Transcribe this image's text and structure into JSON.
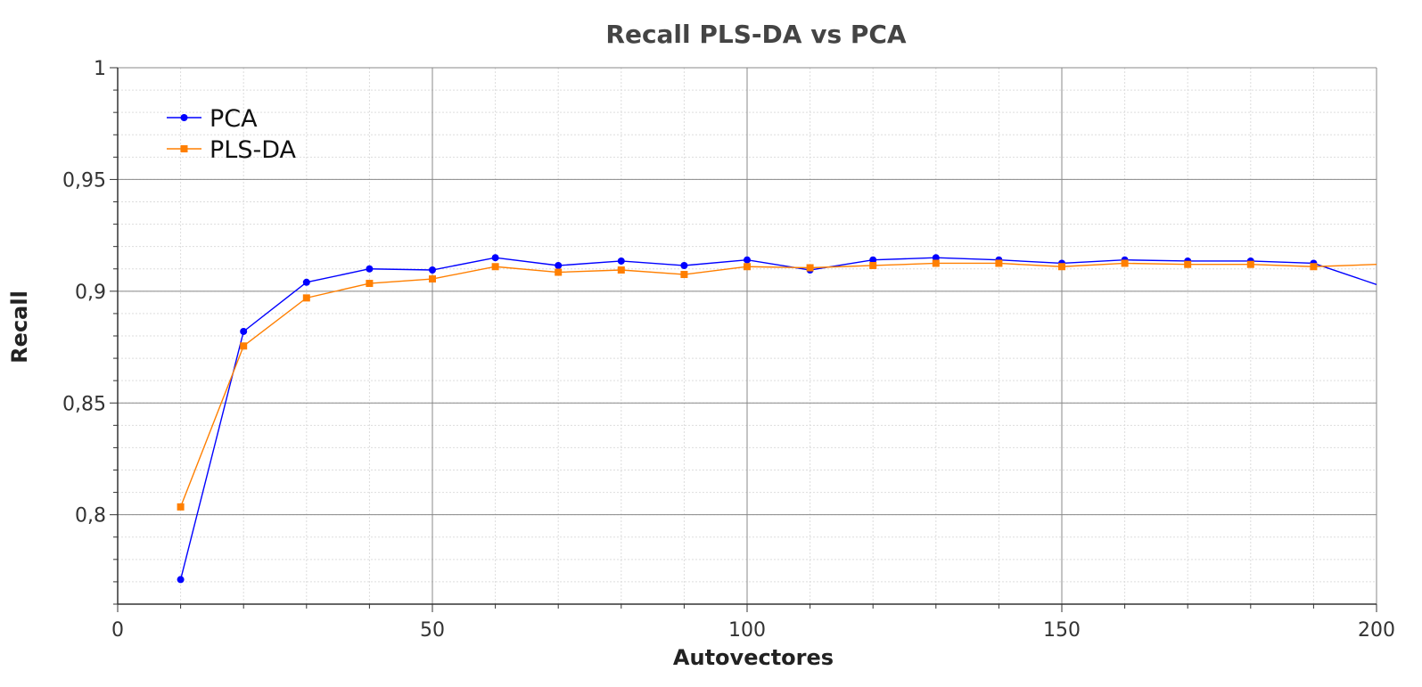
{
  "chart_data": {
    "type": "line",
    "title": "Recall PLS-DA vs PCA",
    "xlabel": "Autovectores",
    "ylabel": "Recall",
    "xlim": [
      0,
      200
    ],
    "ylim": [
      0.76,
      1.0
    ],
    "x_ticks": [
      0,
      50,
      100,
      150,
      200
    ],
    "x_tick_labels": [
      "0",
      "50",
      "100",
      "150",
      "200"
    ],
    "y_ticks": [
      0.8,
      0.85,
      0.9,
      0.95,
      1.0
    ],
    "y_tick_labels": [
      "0,8",
      "0,85",
      "0,9",
      "0,95",
      "1"
    ],
    "grid": true,
    "legend_position": "top-left",
    "series": [
      {
        "name": "PCA",
        "color": "#0000ff",
        "marker": "circle",
        "x": [
          10,
          20,
          30,
          40,
          50,
          60,
          70,
          80,
          90,
          100,
          110,
          120,
          130,
          140,
          150,
          160,
          170,
          180,
          190,
          200
        ],
        "values": [
          0.771,
          0.882,
          0.904,
          0.91,
          0.9095,
          0.915,
          0.9115,
          0.9135,
          0.9115,
          0.914,
          0.9095,
          0.914,
          0.915,
          0.914,
          0.9125,
          0.914,
          0.9135,
          0.9135,
          0.9125,
          0.903
        ]
      },
      {
        "name": "PLS-DA",
        "color": "#ff7f00",
        "marker": "square",
        "x": [
          10,
          20,
          30,
          40,
          50,
          60,
          70,
          80,
          90,
          100,
          110,
          120,
          130,
          140,
          150,
          160,
          170,
          180,
          190,
          200
        ],
        "values": [
          0.8035,
          0.8755,
          0.897,
          0.9035,
          0.9055,
          0.911,
          0.9085,
          0.9095,
          0.9075,
          0.911,
          0.9105,
          0.9115,
          0.9125,
          0.9125,
          0.911,
          0.9125,
          0.912,
          0.912,
          0.911,
          0.912
        ]
      }
    ]
  }
}
